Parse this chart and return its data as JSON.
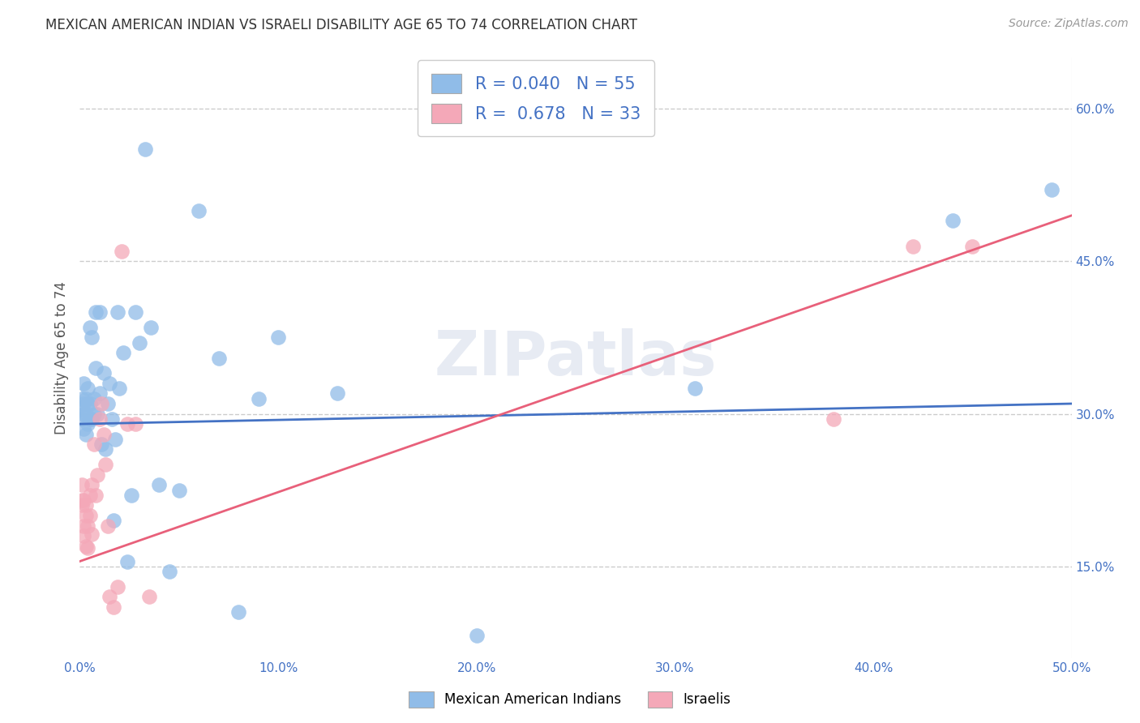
{
  "title": "MEXICAN AMERICAN INDIAN VS ISRAELI DISABILITY AGE 65 TO 74 CORRELATION CHART",
  "source": "Source: ZipAtlas.com",
  "xlim": [
    0.0,
    0.5
  ],
  "ylim": [
    0.06,
    0.65
  ],
  "watermark": "ZIPatlas",
  "blue_color": "#90bce8",
  "pink_color": "#f4a8b8",
  "blue_line_color": "#4472c4",
  "pink_line_color": "#e8607a",
  "legend_blue_r": "0.040",
  "legend_blue_n": "55",
  "legend_pink_r": "0.678",
  "legend_pink_n": "33",
  "blue_points_x": [
    0.001,
    0.001,
    0.001,
    0.002,
    0.002,
    0.002,
    0.002,
    0.003,
    0.003,
    0.003,
    0.004,
    0.004,
    0.004,
    0.005,
    0.005,
    0.005,
    0.006,
    0.006,
    0.007,
    0.007,
    0.008,
    0.008,
    0.009,
    0.01,
    0.01,
    0.011,
    0.012,
    0.013,
    0.014,
    0.015,
    0.016,
    0.017,
    0.018,
    0.019,
    0.02,
    0.022,
    0.024,
    0.026,
    0.028,
    0.03,
    0.033,
    0.036,
    0.04,
    0.045,
    0.05,
    0.06,
    0.07,
    0.08,
    0.09,
    0.1,
    0.13,
    0.2,
    0.31,
    0.44,
    0.49
  ],
  "blue_points_y": [
    0.295,
    0.305,
    0.315,
    0.285,
    0.3,
    0.31,
    0.33,
    0.28,
    0.3,
    0.315,
    0.29,
    0.31,
    0.325,
    0.295,
    0.31,
    0.385,
    0.295,
    0.375,
    0.3,
    0.315,
    0.4,
    0.345,
    0.3,
    0.32,
    0.4,
    0.27,
    0.34,
    0.265,
    0.31,
    0.33,
    0.295,
    0.195,
    0.275,
    0.4,
    0.325,
    0.36,
    0.155,
    0.22,
    0.4,
    0.37,
    0.56,
    0.385,
    0.23,
    0.145,
    0.225,
    0.5,
    0.355,
    0.105,
    0.315,
    0.375,
    0.32,
    0.082,
    0.325,
    0.49,
    0.52
  ],
  "pink_points_x": [
    0.001,
    0.001,
    0.001,
    0.002,
    0.002,
    0.002,
    0.003,
    0.003,
    0.003,
    0.004,
    0.004,
    0.005,
    0.005,
    0.006,
    0.006,
    0.007,
    0.008,
    0.009,
    0.01,
    0.011,
    0.012,
    0.013,
    0.014,
    0.015,
    0.017,
    0.019,
    0.021,
    0.024,
    0.028,
    0.035,
    0.38,
    0.42,
    0.45
  ],
  "pink_points_y": [
    0.215,
    0.23,
    0.21,
    0.18,
    0.19,
    0.215,
    0.21,
    0.2,
    0.17,
    0.168,
    0.19,
    0.2,
    0.22,
    0.23,
    0.182,
    0.27,
    0.22,
    0.24,
    0.295,
    0.31,
    0.28,
    0.25,
    0.19,
    0.12,
    0.11,
    0.13,
    0.46,
    0.29,
    0.29,
    0.12,
    0.295,
    0.465,
    0.465
  ],
  "blue_line_x": [
    0.0,
    0.5
  ],
  "blue_line_y": [
    0.29,
    0.31
  ],
  "pink_line_x": [
    0.0,
    0.5
  ],
  "pink_line_y": [
    0.155,
    0.495
  ],
  "ylabel": "Disability Age 65 to 74",
  "legend_label_blue": "Mexican American Indians",
  "legend_label_pink": "Israelis",
  "gridline_color": "#cccccc",
  "gridline_style": "--",
  "background_color": "#ffffff",
  "title_fontsize": 12,
  "axis_tick_color": "#4472c4",
  "ylabel_color": "#555555",
  "title_color": "#333333",
  "source_color": "#999999"
}
